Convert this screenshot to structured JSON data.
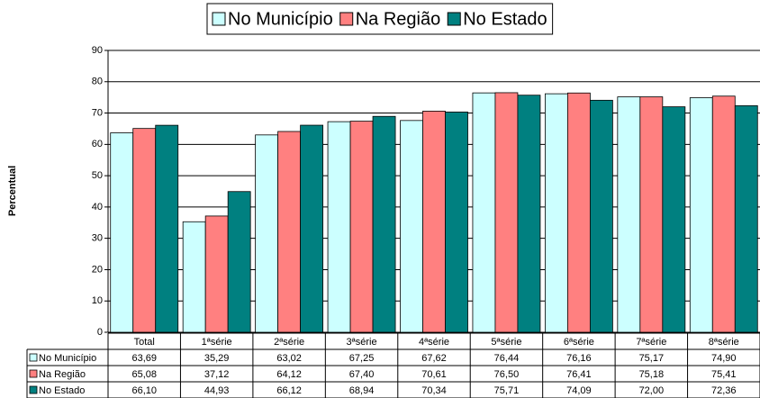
{
  "chart_data": {
    "type": "bar",
    "y_label": "Percentual",
    "categories": [
      "Total",
      "1ªsérie",
      "2ªsérie",
      "3ªsérie",
      "4ªsérie",
      "5ªsérie",
      "6ªsérie",
      "7ªsérie",
      "8ªsérie"
    ],
    "series": [
      {
        "name": "No Município",
        "color": "#ccffff",
        "values": [
          63.69,
          35.29,
          63.02,
          67.25,
          67.62,
          76.44,
          76.16,
          75.17,
          74.9
        ],
        "value_labels": [
          "63,69",
          "35,29",
          "63,02",
          "67,25",
          "67,62",
          "76,44",
          "76,16",
          "75,17",
          "74,90"
        ]
      },
      {
        "name": "Na Região",
        "color": "#ff8080",
        "values": [
          65.08,
          37.12,
          64.12,
          67.4,
          70.61,
          76.5,
          76.41,
          75.18,
          75.41
        ],
        "value_labels": [
          "65,08",
          "37,12",
          "64,12",
          "67,40",
          "70,61",
          "76,50",
          "76,41",
          "75,18",
          "75,41"
        ]
      },
      {
        "name": "No Estado",
        "color": "#008080",
        "values": [
          66.1,
          44.93,
          66.12,
          68.94,
          70.34,
          75.71,
          74.09,
          72.0,
          72.36
        ],
        "value_labels": [
          "66,10",
          "44,93",
          "66,12",
          "68,94",
          "70,34",
          "75,71",
          "74,09",
          "72,00",
          "72,36"
        ]
      }
    ],
    "ylim": [
      0,
      90
    ],
    "yticks": [
      0,
      10,
      20,
      30,
      40,
      50,
      60,
      70,
      80,
      90
    ],
    "grid": true,
    "legend": "top"
  }
}
